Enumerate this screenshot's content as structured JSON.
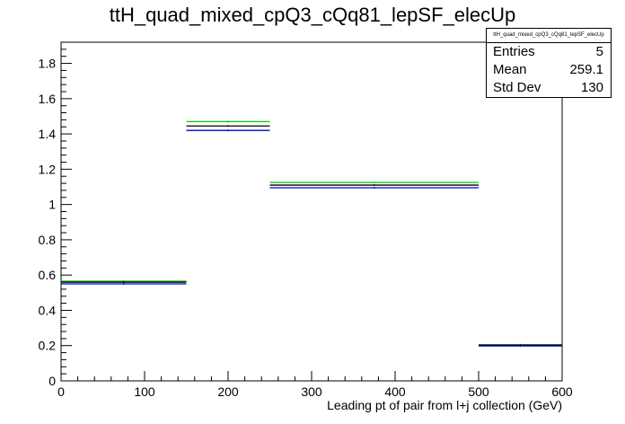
{
  "chart_data": {
    "type": "histogram",
    "title": "ttH_quad_mixed_cpQ3_cQq81_lepSF_elecUp",
    "xlabel": "Leading pt of pair from l+j collection (GeV)",
    "ylabel": "",
    "xlim": [
      0,
      600
    ],
    "ylim": [
      0,
      1.92
    ],
    "x_ticks": [
      0,
      100,
      200,
      300,
      400,
      500,
      600
    ],
    "y_ticks": [
      0,
      0.2,
      0.4,
      0.6,
      0.8,
      1,
      1.2,
      1.4,
      1.6,
      1.8
    ],
    "y_tick_labels": [
      "0",
      "0.2",
      "0.4",
      "0.6",
      "0.8",
      "1",
      "1.2",
      "1.4",
      "1.6",
      "1.8"
    ],
    "bin_edges": [
      0,
      150,
      250,
      500,
      600
    ],
    "series": [
      {
        "color": "#00cc00",
        "values": [
          0.565,
          1.47,
          1.125,
          0.205
        ]
      },
      {
        "color": "#000000",
        "values": [
          0.56,
          1.445,
          1.11,
          0.203
        ]
      },
      {
        "color": "#0000cc",
        "values": [
          0.55,
          1.42,
          1.095,
          0.198
        ]
      }
    ],
    "stats": {
      "name": "ttH_quad_mixed_cpQ3_cQq81_lepSF_elecUp",
      "entries_label": "Entries",
      "entries": "5",
      "mean_label": "Mean",
      "mean": "259.1",
      "stddev_label": "Std Dev",
      "stddev": "130"
    }
  }
}
